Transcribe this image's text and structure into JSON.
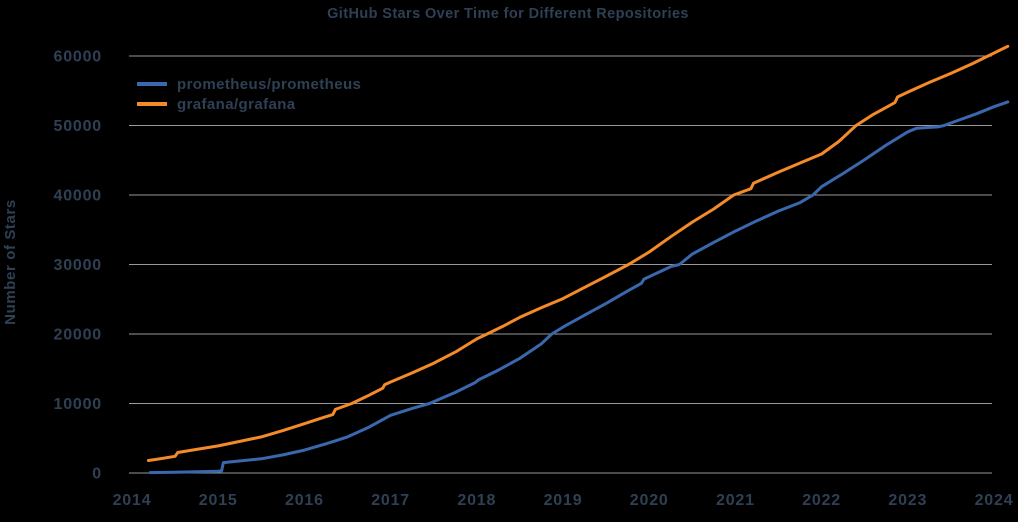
{
  "title": "GitHub Stars Over Time for Different Repositories",
  "colors": {
    "background": "#000000",
    "text": "#2F4054",
    "gridline": "#999999",
    "prometheus_line": "#3A68AE",
    "grafana_line": "#F48A28"
  },
  "chart_data": {
    "type": "line",
    "title": "GitHub Stars Over Time for Different Repositories",
    "xlabel": "",
    "ylabel": "Number of Stars",
    "x_ticks": [
      2014,
      2015,
      2016,
      2017,
      2018,
      2019,
      2020,
      2021,
      2022,
      2023,
      2024
    ],
    "y_ticks": [
      0,
      10000,
      20000,
      30000,
      40000,
      50000,
      60000
    ],
    "xlim": [
      2013.97,
      2024.2
    ],
    "ylim": [
      0,
      60000
    ],
    "grid": true,
    "legend_position": "upper-left",
    "series": [
      {
        "name": "prometheus/prometheus",
        "color": "#3A68AE",
        "points": [
          [
            2014.21,
            60
          ],
          [
            2014.5,
            120
          ],
          [
            2014.75,
            180
          ],
          [
            2015.0,
            260
          ],
          [
            2015.04,
            320
          ],
          [
            2015.06,
            1500
          ],
          [
            2015.3,
            1800
          ],
          [
            2015.5,
            2050
          ],
          [
            2015.75,
            2600
          ],
          [
            2016.0,
            3300
          ],
          [
            2016.25,
            4200
          ],
          [
            2016.5,
            5200
          ],
          [
            2016.75,
            6600
          ],
          [
            2017.0,
            8300
          ],
          [
            2017.25,
            9300
          ],
          [
            2017.45,
            10000
          ],
          [
            2017.75,
            11600
          ],
          [
            2017.98,
            13000
          ],
          [
            2018.02,
            13400
          ],
          [
            2018.25,
            14800
          ],
          [
            2018.5,
            16500
          ],
          [
            2018.75,
            18600
          ],
          [
            2018.87,
            20000
          ],
          [
            2019.0,
            21000
          ],
          [
            2019.25,
            22700
          ],
          [
            2019.5,
            24400
          ],
          [
            2019.75,
            26200
          ],
          [
            2019.91,
            27300
          ],
          [
            2019.94,
            27900
          ],
          [
            2020.25,
            29700
          ],
          [
            2020.35,
            30000
          ],
          [
            2020.5,
            31500
          ],
          [
            2020.75,
            33200
          ],
          [
            2021.0,
            34800
          ],
          [
            2021.25,
            36300
          ],
          [
            2021.5,
            37700
          ],
          [
            2021.75,
            38900
          ],
          [
            2021.9,
            40000
          ],
          [
            2022.0,
            41200
          ],
          [
            2022.25,
            43100
          ],
          [
            2022.5,
            45100
          ],
          [
            2022.75,
            47200
          ],
          [
            2023.0,
            49100
          ],
          [
            2023.1,
            49600
          ],
          [
            2023.35,
            49800
          ],
          [
            2023.42,
            50000
          ],
          [
            2023.6,
            50800
          ],
          [
            2023.8,
            51700
          ],
          [
            2024.0,
            52700
          ],
          [
            2024.16,
            53400
          ]
        ]
      },
      {
        "name": "grafana/grafana",
        "color": "#F48A28",
        "points": [
          [
            2014.19,
            1800
          ],
          [
            2014.3,
            2000
          ],
          [
            2014.5,
            2400
          ],
          [
            2014.53,
            2950
          ],
          [
            2014.75,
            3400
          ],
          [
            2015.0,
            3900
          ],
          [
            2015.25,
            4550
          ],
          [
            2015.5,
            5200
          ],
          [
            2015.75,
            6100
          ],
          [
            2016.0,
            7100
          ],
          [
            2016.2,
            7900
          ],
          [
            2016.33,
            8400
          ],
          [
            2016.36,
            9150
          ],
          [
            2016.55,
            10000
          ],
          [
            2016.75,
            11200
          ],
          [
            2016.91,
            12200
          ],
          [
            2016.93,
            12700
          ],
          [
            2017.0,
            13100
          ],
          [
            2017.25,
            14400
          ],
          [
            2017.5,
            15800
          ],
          [
            2017.75,
            17400
          ],
          [
            2018.0,
            19300
          ],
          [
            2018.12,
            20000
          ],
          [
            2018.3,
            21100
          ],
          [
            2018.5,
            22400
          ],
          [
            2018.75,
            23800
          ],
          [
            2019.0,
            25100
          ],
          [
            2019.25,
            26700
          ],
          [
            2019.5,
            28300
          ],
          [
            2019.76,
            30000
          ],
          [
            2020.0,
            31800
          ],
          [
            2020.25,
            34000
          ],
          [
            2020.5,
            36100
          ],
          [
            2020.75,
            38000
          ],
          [
            2020.98,
            40000
          ],
          [
            2021.18,
            40900
          ],
          [
            2021.21,
            41700
          ],
          [
            2021.5,
            43300
          ],
          [
            2021.75,
            44600
          ],
          [
            2022.0,
            45900
          ],
          [
            2022.2,
            47700
          ],
          [
            2022.4,
            50000
          ],
          [
            2022.6,
            51600
          ],
          [
            2022.85,
            53300
          ],
          [
            2022.88,
            54100
          ],
          [
            2023.0,
            54800
          ],
          [
            2023.25,
            56200
          ],
          [
            2023.5,
            57500
          ],
          [
            2023.75,
            58900
          ],
          [
            2023.93,
            60000
          ],
          [
            2024.16,
            61400
          ]
        ]
      }
    ]
  },
  "legend": {
    "items": [
      {
        "label": "prometheus/prometheus",
        "color": "#3A68AE"
      },
      {
        "label": "grafana/grafana",
        "color": "#F48A28"
      }
    ]
  }
}
